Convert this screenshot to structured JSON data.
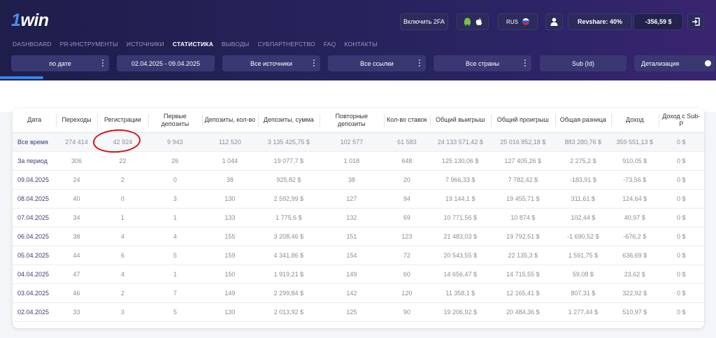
{
  "brand": {
    "logo_num": "1",
    "logo_text": "win"
  },
  "header": {
    "twofa_label": "Включить 2FA",
    "lang_label": "RUS",
    "revshare_label": "Revshare: 40%",
    "balance": "-356,59 $"
  },
  "nav": [
    "DASHBOARD",
    "PR-ИНСТРУМЕНТЫ",
    "ИСТОЧНИКИ",
    "СТАТИСТИКА",
    "ВЫВОДЫ",
    "СУБПАРТНЕРСТВО",
    "FAQ",
    "КОНТАКТЫ"
  ],
  "filters": {
    "group": "по дате",
    "date_range": "02.04.2025 - 09.04.2025",
    "sources": "Все источники",
    "links": "Все ссылки",
    "countries": "Все страны",
    "sub": "Sub (Id)",
    "detail": "Детализация"
  },
  "table": {
    "headers": [
      "Дата",
      "Переходы",
      "Регистрации",
      "Первые депозиты",
      "Депозиты, кол-во",
      "Депозиты, сумма",
      "Повторные депозиты",
      "Кол-во ставок",
      "Общий выигрыш",
      "Общий проигрыш",
      "Общая разница",
      "Доход",
      "Доход с Sub-P"
    ],
    "rows": [
      [
        "Все время",
        "274 414",
        "42 924",
        "9 943",
        "112 520",
        "3 135 425,75 $",
        "102 577",
        "61 583",
        "24 133 571,42 $",
        "25 016 852,18 $",
        "883 280,76 $",
        "359 551,13 $",
        "0 $"
      ],
      [
        "За период",
        "306",
        "22",
        "26",
        "1 044",
        "19 077,7 $",
        "1 018",
        "648",
        "125 130,06 $",
        "127 405,26 $",
        "2 275,2 $",
        "910,05 $",
        "0 $"
      ],
      [
        "09.04.2025",
        "24",
        "2",
        "0",
        "38",
        "925,82 $",
        "38",
        "20",
        "7 966,33 $",
        "7 782,42 $",
        "-183,91 $",
        "-73,56 $",
        "0 $"
      ],
      [
        "08.04.2025",
        "40",
        "0",
        "3",
        "130",
        "2 592,99 $",
        "127",
        "94",
        "19 144,1 $",
        "19 455,71 $",
        "311,61 $",
        "124,64 $",
        "0 $"
      ],
      [
        "07.04.2025",
        "34",
        "1",
        "1",
        "133",
        "1 775,6 $",
        "132",
        "69",
        "10 771,56 $",
        "10 874 $",
        "102,44 $",
        "40,97 $",
        "0 $"
      ],
      [
        "06.04.2025",
        "38",
        "4",
        "4",
        "155",
        "3 208,46 $",
        "151",
        "123",
        "21 483,03 $",
        "19 792,51 $",
        "-1 690,52 $",
        "-676,2 $",
        "0 $"
      ],
      [
        "05.04.2025",
        "44",
        "6",
        "5",
        "159",
        "4 341,86 $",
        "154",
        "72",
        "20 543,55 $",
        "22 135,3 $",
        "1 591,75 $",
        "636,69 $",
        "0 $"
      ],
      [
        "04.04.2025",
        "47",
        "4",
        "1",
        "150",
        "1 919,21 $",
        "149",
        "60",
        "14 656,47 $",
        "14 715,55 $",
        "59,08 $",
        "23,62 $",
        "0 $"
      ],
      [
        "03.04.2025",
        "46",
        "2",
        "7",
        "149",
        "2 299,84 $",
        "142",
        "120",
        "11 358,1 $",
        "12 165,41 $",
        "807,31 $",
        "322,92 $",
        "0 $"
      ],
      [
        "02.04.2025",
        "33",
        "3",
        "5",
        "130",
        "2 013,92 $",
        "125",
        "90",
        "19 206,92 $",
        "20 484,36 $",
        "1 277,44 $",
        "510,97 $",
        "0 $"
      ]
    ]
  },
  "colors": {
    "header_bg": "#25235a",
    "accent": "#2f86f6",
    "annotation": "#d2161c"
  },
  "icons": [
    "android-icon",
    "apple-icon",
    "russia-flag-icon",
    "user-icon",
    "logout-icon"
  ]
}
